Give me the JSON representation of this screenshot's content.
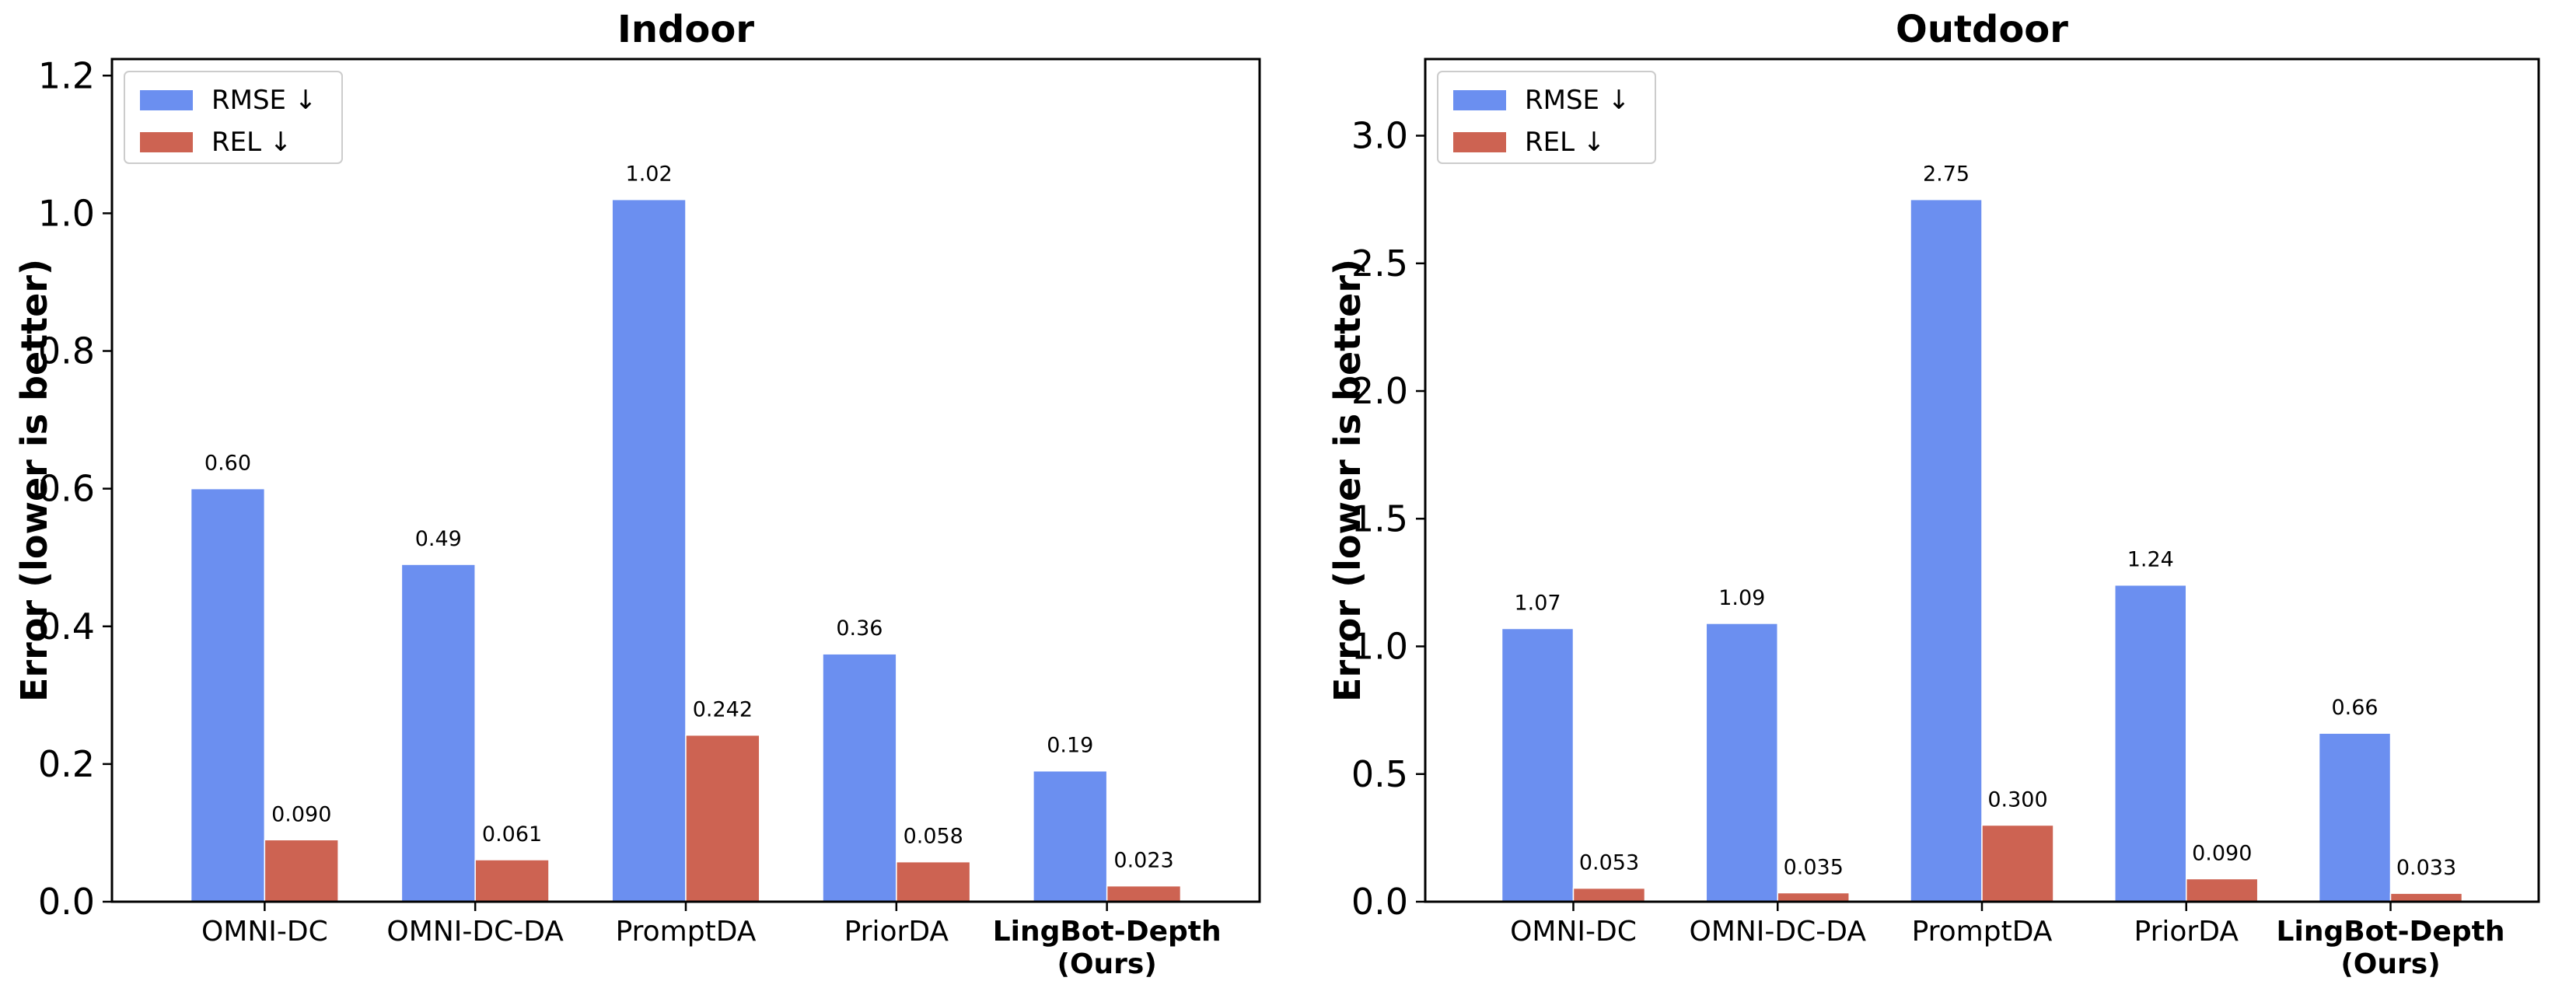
{
  "chart_data": [
    {
      "type": "bar",
      "title": "Indoor",
      "ylabel": "Error (lower is better)",
      "xlabel": "",
      "categories": [
        "OMNI-DC",
        "OMNI-DC-DA",
        "PromptDA",
        "PriorDA",
        "LingBot-Depth\n(Ours)"
      ],
      "bold_categories": [
        false,
        false,
        false,
        false,
        true
      ],
      "series": [
        {
          "name": "RMSE ↓",
          "color": "#6b8ff0",
          "values": [
            0.6,
            0.49,
            1.02,
            0.36,
            0.19
          ],
          "labels": [
            "0.60",
            "0.49",
            "1.02",
            "0.36",
            "0.19"
          ]
        },
        {
          "name": "REL ↓",
          "color": "#cd6352",
          "values": [
            0.09,
            0.061,
            0.242,
            0.058,
            0.023
          ],
          "labels": [
            "0.090",
            "0.061",
            "0.242",
            "0.058",
            "0.023"
          ]
        }
      ],
      "ylim": [
        0,
        1.224
      ],
      "yticks": [
        0.0,
        0.2,
        0.4,
        0.6,
        0.8,
        1.0,
        1.2
      ],
      "ytick_labels": [
        "0.0",
        "0.2",
        "0.4",
        "0.6",
        "0.8",
        "1.0",
        "1.2"
      ],
      "grid": false,
      "legend": "top-left"
    },
    {
      "type": "bar",
      "title": "Outdoor",
      "ylabel": "Error (lower is better)",
      "xlabel": "",
      "categories": [
        "OMNI-DC",
        "OMNI-DC-DA",
        "PromptDA",
        "PriorDA",
        "LingBot-Depth\n(Ours)"
      ],
      "bold_categories": [
        false,
        false,
        false,
        false,
        true
      ],
      "series": [
        {
          "name": "RMSE ↓",
          "color": "#6b8ff0",
          "values": [
            1.07,
            1.09,
            2.75,
            1.24,
            0.66
          ],
          "labels": [
            "1.07",
            "1.09",
            "2.75",
            "1.24",
            "0.66"
          ]
        },
        {
          "name": "REL ↓",
          "color": "#cd6352",
          "values": [
            0.053,
            0.035,
            0.3,
            0.09,
            0.033
          ],
          "labels": [
            "0.053",
            "0.035",
            "0.300",
            "0.090",
            "0.033"
          ]
        }
      ],
      "ylim": [
        0,
        3.3
      ],
      "yticks": [
        0.0,
        0.5,
        1.0,
        1.5,
        2.0,
        2.5,
        3.0
      ],
      "ytick_labels": [
        "0.0",
        "0.5",
        "1.0",
        "1.5",
        "2.0",
        "2.5",
        "3.0"
      ],
      "grid": false,
      "legend": "top-left"
    }
  ]
}
